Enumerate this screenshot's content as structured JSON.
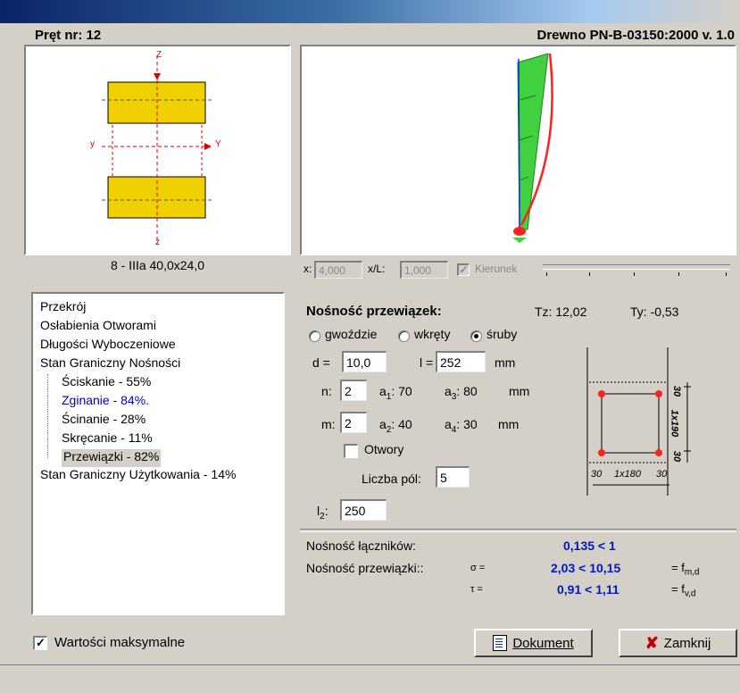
{
  "header": {
    "element_label": "Pręt nr: 12",
    "standard": "Drewno PN-B-03150:2000 v. 1.0"
  },
  "section": {
    "name": "8 - IIIa 40,0x24,0",
    "axis_z": "Z",
    "axis_y": "y",
    "axis_Y": "Y",
    "axis_z2": "z"
  },
  "position": {
    "x_label": "x:",
    "x_value": "4,000",
    "xl_label": "x/L:",
    "xl_value": "1,000",
    "kierunek_label": "Kierunek"
  },
  "tree": {
    "items": [
      {
        "label": "Przekrój"
      },
      {
        "label": "Osłabienia Otworami"
      },
      {
        "label": "Długości Wyboczeniowe"
      },
      {
        "label": "Stan Graniczny Nośności"
      }
    ],
    "children": [
      {
        "label": "Ściskanie - 55%"
      },
      {
        "label": "Zginanie - 84%."
      },
      {
        "label": "Ścinanie - 28%"
      },
      {
        "label": "Skręcanie - 11%"
      },
      {
        "label": "Przewiązki - 82%"
      }
    ],
    "last": {
      "label": "Stan Graniczny Użytkowania - 14%"
    }
  },
  "nosnosc": {
    "title": "Nośność przewiązek:",
    "tz": "Tz: 12,02",
    "ty": "Ty: -0,53",
    "opt_gwozdzie": "gwoździe",
    "opt_wkrety": "wkręty",
    "opt_sruby": "śruby",
    "d_label": "d =",
    "d_value": "10,0",
    "l_label": "l =",
    "l_value": "252",
    "unit": "mm",
    "n_label": "n:",
    "n_value": "2",
    "a1_label": "a",
    "a1_sub": "1",
    "a1_value": ": 70",
    "a3_label": "a",
    "a3_sub": "3",
    "a3_value": ": 80",
    "m_label": "m:",
    "m_value": "2",
    "a2_label": "a",
    "a2_sub": "2",
    "a2_value": ": 40",
    "a4_label": "a",
    "a4_sub": "4",
    "a4_value": ": 30",
    "otwory_label": "Otwory",
    "liczba_label": "Liczba pól:",
    "liczba_value": "5",
    "l2_label": "l",
    "l2_sub": "2",
    "l2_value": "250",
    "dim_30a": "30",
    "dim_1x190": "1x190",
    "dim_30b": "30",
    "dim_30c": "30",
    "dim_1x180": "1x180",
    "dim_30d": "30"
  },
  "results": {
    "lacz_label": "Nośność łączników:",
    "lacz_value": "0,135 < 1",
    "przew_label": "Nośność przewiązki::",
    "sigma": "σ =",
    "sigma_value": "2,03 < 10,15",
    "fmd": "= f",
    "fmd_sub": "m,d",
    "tau": "τ =",
    "tau_value": "0,91 < 1,11",
    "fvd": "= f",
    "fvd_sub": "v,d"
  },
  "footer": {
    "max_label": "Wartości maksymalne",
    "dokument_label": "Dokument",
    "zamknij_label": "Zamknij"
  },
  "colors": {
    "flange": "#f0d000",
    "member": "#40d040",
    "curve": "#ff2020"
  }
}
